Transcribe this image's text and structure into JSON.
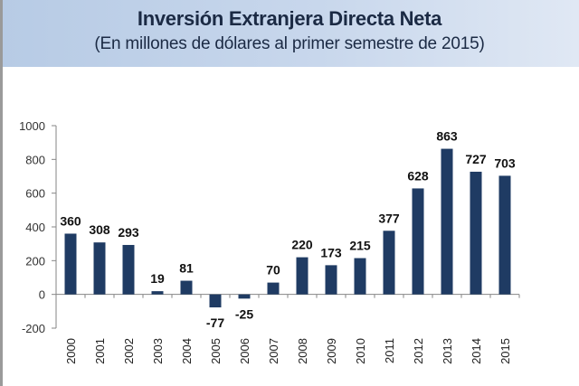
{
  "chart_data": {
    "type": "bar",
    "title": "Inversión Extranjera Directa Neta",
    "subtitle": "(En millones de dólares al primer semestre de 2015)",
    "xlabel": "",
    "ylabel": "",
    "categories": [
      "2000",
      "2001",
      "2002",
      "2003",
      "2004",
      "2005",
      "2006",
      "2007",
      "2008",
      "2009",
      "2010",
      "2011",
      "2012",
      "2013",
      "2014",
      "2015"
    ],
    "values": [
      360,
      308,
      293,
      19,
      81,
      -77,
      -25,
      70,
      220,
      173,
      215,
      377,
      628,
      863,
      727,
      703
    ],
    "data_labels": [
      "360",
      "308",
      "293",
      "19",
      "81",
      "-77",
      "-25",
      "70",
      "220",
      "173",
      "215",
      "377",
      "628",
      "863",
      "727",
      "703"
    ],
    "ylim": [
      -200,
      1000
    ],
    "yticks": [
      -200,
      0,
      200,
      400,
      600,
      800,
      1000
    ],
    "ytick_labels": [
      "-200",
      "0",
      "200",
      "400",
      "600",
      "800",
      "1000"
    ],
    "grid": false,
    "legend": "none",
    "bar_color": "#1f3b63",
    "header_color": "#c3d4ea"
  }
}
